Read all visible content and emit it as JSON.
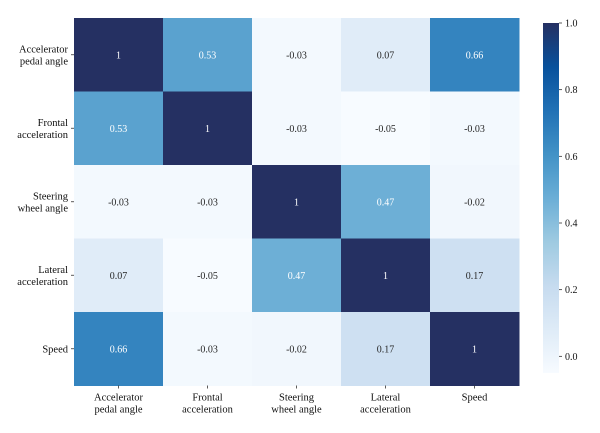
{
  "chart_data": {
    "type": "heatmap",
    "title": "",
    "xlabel": "",
    "ylabel": "",
    "x_labels": [
      [
        "Accelerator",
        "pedal angle"
      ],
      [
        "Frontal",
        "acceleration"
      ],
      [
        "Steering",
        "wheel angle"
      ],
      [
        "Lateral",
        "acceleration"
      ],
      [
        "Speed"
      ]
    ],
    "y_labels": [
      [
        "Accelerator",
        "pedal angle"
      ],
      [
        "Frontal",
        "acceleration"
      ],
      [
        "Steering",
        "wheel angle"
      ],
      [
        "Lateral",
        "acceleration"
      ],
      [
        "Speed"
      ]
    ],
    "values": [
      [
        1,
        0.53,
        -0.03,
        0.07,
        0.66
      ],
      [
        0.53,
        1,
        -0.03,
        -0.05,
        -0.03
      ],
      [
        -0.03,
        -0.03,
        1,
        0.47,
        -0.02
      ],
      [
        0.07,
        -0.05,
        0.47,
        1,
        0.17
      ],
      [
        0.66,
        -0.03,
        -0.02,
        0.17,
        1
      ]
    ],
    "colorbar": {
      "min": -0.05,
      "max": 1.0,
      "ticks": [
        "1.0",
        "0.8",
        "0.6",
        "0.4",
        "0.2",
        "0.0"
      ],
      "colormap": "Blues"
    }
  }
}
